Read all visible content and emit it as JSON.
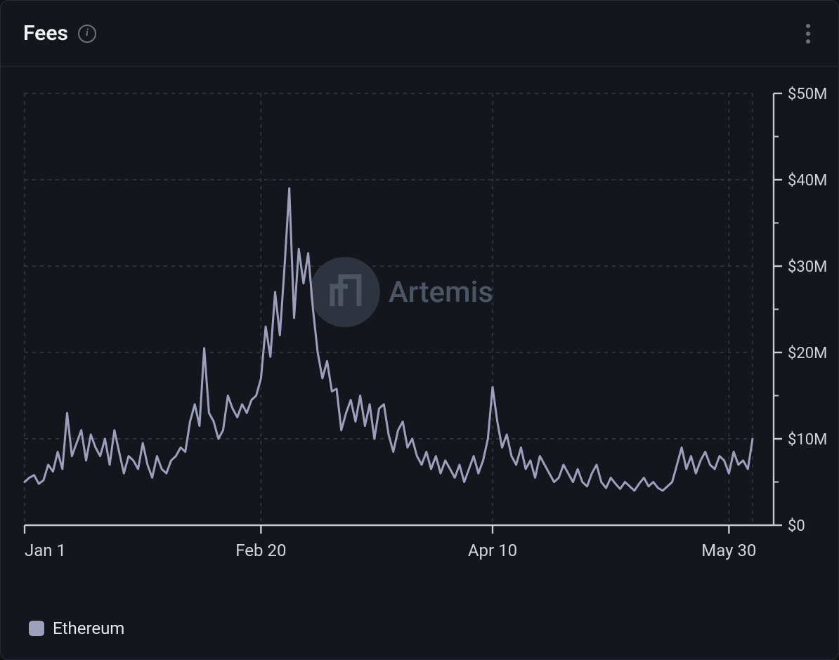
{
  "header": {
    "title": "Fees",
    "info_glyph": "i"
  },
  "watermark": {
    "text": "Artemis",
    "logo_bg": "#2e3340",
    "logo_fg": "#4b5563"
  },
  "chart": {
    "type": "line",
    "background_color": "#14161d",
    "grid_color": "#3a3d48",
    "axis_color": "#c9cbd1",
    "line_color": "#9ca0bd",
    "line_width": 3,
    "ylim": [
      0,
      50
    ],
    "ytick_step": 10,
    "y_unit_prefix": "$",
    "y_unit_suffix": "M",
    "ytick_labels": [
      "$0",
      "$10M",
      "$20M",
      "$30M",
      "$40M",
      "$50M"
    ],
    "xtick_indices": [
      0,
      50,
      99,
      149
    ],
    "xtick_labels": [
      "Jan 1",
      "Feb 20",
      "Apr 10",
      "May 30"
    ],
    "tick_fontsize": 22,
    "series": [
      {
        "name": "Ethereum",
        "color": "#9ca0bd",
        "values": [
          5.0,
          5.5,
          5.8,
          4.8,
          5.2,
          7.0,
          6.2,
          8.5,
          6.5,
          13.0,
          8.0,
          9.5,
          11.0,
          7.5,
          10.5,
          9.0,
          8.0,
          10.0,
          7.0,
          11.0,
          8.5,
          6.0,
          8.0,
          7.5,
          6.5,
          9.5,
          7.0,
          5.5,
          8.0,
          6.5,
          6.0,
          7.5,
          8.0,
          9.0,
          8.5,
          12.0,
          14.0,
          11.5,
          20.5,
          13.0,
          12.0,
          10.0,
          11.0,
          15.0,
          13.5,
          12.5,
          14.0,
          13.0,
          14.5,
          15.0,
          17.0,
          23.0,
          19.5,
          27.0,
          22.0,
          30.0,
          39.0,
          24.0,
          32.0,
          28.0,
          31.5,
          25.0,
          20.0,
          17.0,
          19.0,
          15.5,
          15.8,
          11.0,
          13.0,
          14.5,
          12.0,
          15.0,
          11.5,
          14.0,
          10.0,
          13.5,
          14.0,
          10.5,
          8.5,
          11.0,
          12.0,
          9.0,
          10.0,
          8.0,
          7.0,
          8.5,
          6.5,
          8.0,
          6.0,
          7.5,
          6.5,
          5.5,
          7.0,
          5.0,
          6.5,
          8.0,
          6.0,
          7.5,
          10.0,
          16.0,
          12.0,
          9.0,
          10.5,
          8.0,
          7.0,
          9.0,
          6.5,
          7.5,
          5.5,
          8.0,
          7.0,
          6.0,
          5.0,
          5.5,
          7.0,
          6.0,
          5.0,
          6.5,
          5.0,
          4.5,
          6.0,
          7.0,
          5.0,
          4.3,
          5.5,
          4.8,
          4.2,
          5.0,
          4.5,
          4.0,
          4.8,
          5.5,
          4.5,
          5.0,
          4.3,
          4.0,
          4.5,
          5.0,
          7.0,
          9.0,
          6.5,
          8.0,
          6.0,
          7.5,
          8.5,
          7.0,
          6.5,
          8.0,
          7.5,
          6.0,
          8.5,
          7.0,
          7.5,
          6.5,
          10.0
        ]
      }
    ]
  },
  "legend": {
    "items": [
      {
        "label": "Ethereum",
        "color": "#9ca0bd"
      }
    ]
  }
}
